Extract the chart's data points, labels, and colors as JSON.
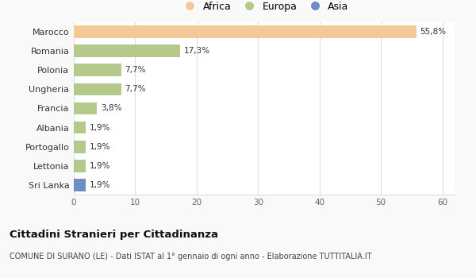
{
  "categories": [
    "Marocco",
    "Romania",
    "Polonia",
    "Ungheria",
    "Francia",
    "Albania",
    "Portogallo",
    "Lettonia",
    "Sri Lanka"
  ],
  "values": [
    55.8,
    17.3,
    7.7,
    7.7,
    3.8,
    1.9,
    1.9,
    1.9,
    1.9
  ],
  "labels": [
    "55,8%",
    "17,3%",
    "7,7%",
    "7,7%",
    "3,8%",
    "1,9%",
    "1,9%",
    "1,9%",
    "1,9%"
  ],
  "colors": [
    "#f5c897",
    "#b5c98a",
    "#b5c98a",
    "#b5c98a",
    "#b5c98a",
    "#b5c98a",
    "#b5c98a",
    "#b5c98a",
    "#6e8fc4"
  ],
  "legend_labels": [
    "Africa",
    "Europa",
    "Asia"
  ],
  "legend_colors": [
    "#f5c897",
    "#b5c98a",
    "#6e8fc4"
  ],
  "xlim": [
    0,
    62
  ],
  "xticks": [
    0,
    10,
    20,
    30,
    40,
    50,
    60
  ],
  "title": "Cittadini Stranieri per Cittadinanza",
  "subtitle": "COMUNE DI SURANO (LE) - Dati ISTAT al 1° gennaio di ogni anno - Elaborazione TUTTITALIA.IT",
  "bg_color": "#f9f9f9",
  "plot_bg_color": "#ffffff",
  "grid_color": "#dddddd"
}
